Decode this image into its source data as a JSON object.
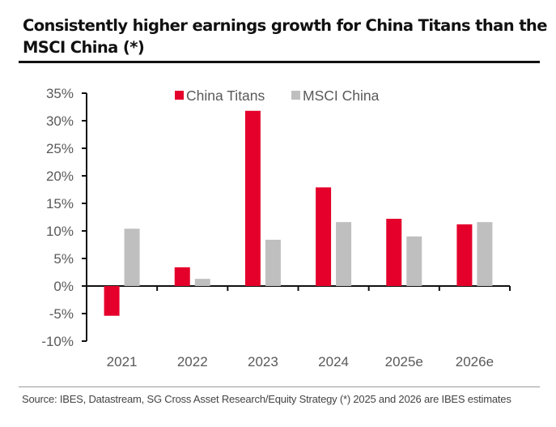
{
  "title": "Consistently higher earnings growth for China Titans than the MSCI China (*)",
  "source": "Source: IBES, Datastream, SG Cross Asset Research/Equity Strategy (*) 2025 and 2026 are IBES estimates",
  "chart_data": {
    "type": "bar",
    "title": "Consistently higher earnings growth for China Titans than the MSCI China (*)",
    "xlabel": "",
    "ylabel": "",
    "categories": [
      "2021",
      "2022",
      "2023",
      "2024",
      "2025e",
      "2026e"
    ],
    "series": [
      {
        "name": "China Titans",
        "color": "#e4002b",
        "values": [
          -5.4,
          3.4,
          31.8,
          17.9,
          12.2,
          11.2
        ]
      },
      {
        "name": "MSCI China",
        "color": "#c0bfbf",
        "values": [
          10.4,
          1.3,
          8.4,
          11.6,
          9.0,
          11.6
        ]
      }
    ],
    "ylim": [
      -10,
      35
    ],
    "yticks": [
      -10,
      -5,
      0,
      5,
      10,
      15,
      20,
      25,
      30,
      35
    ],
    "ytick_labels": [
      "-10%",
      "-5%",
      "0%",
      "5%",
      "10%",
      "15%",
      "20%",
      "25%",
      "30%",
      "35%"
    ],
    "unit": "%",
    "grid": false,
    "legend_position": "top-center"
  }
}
